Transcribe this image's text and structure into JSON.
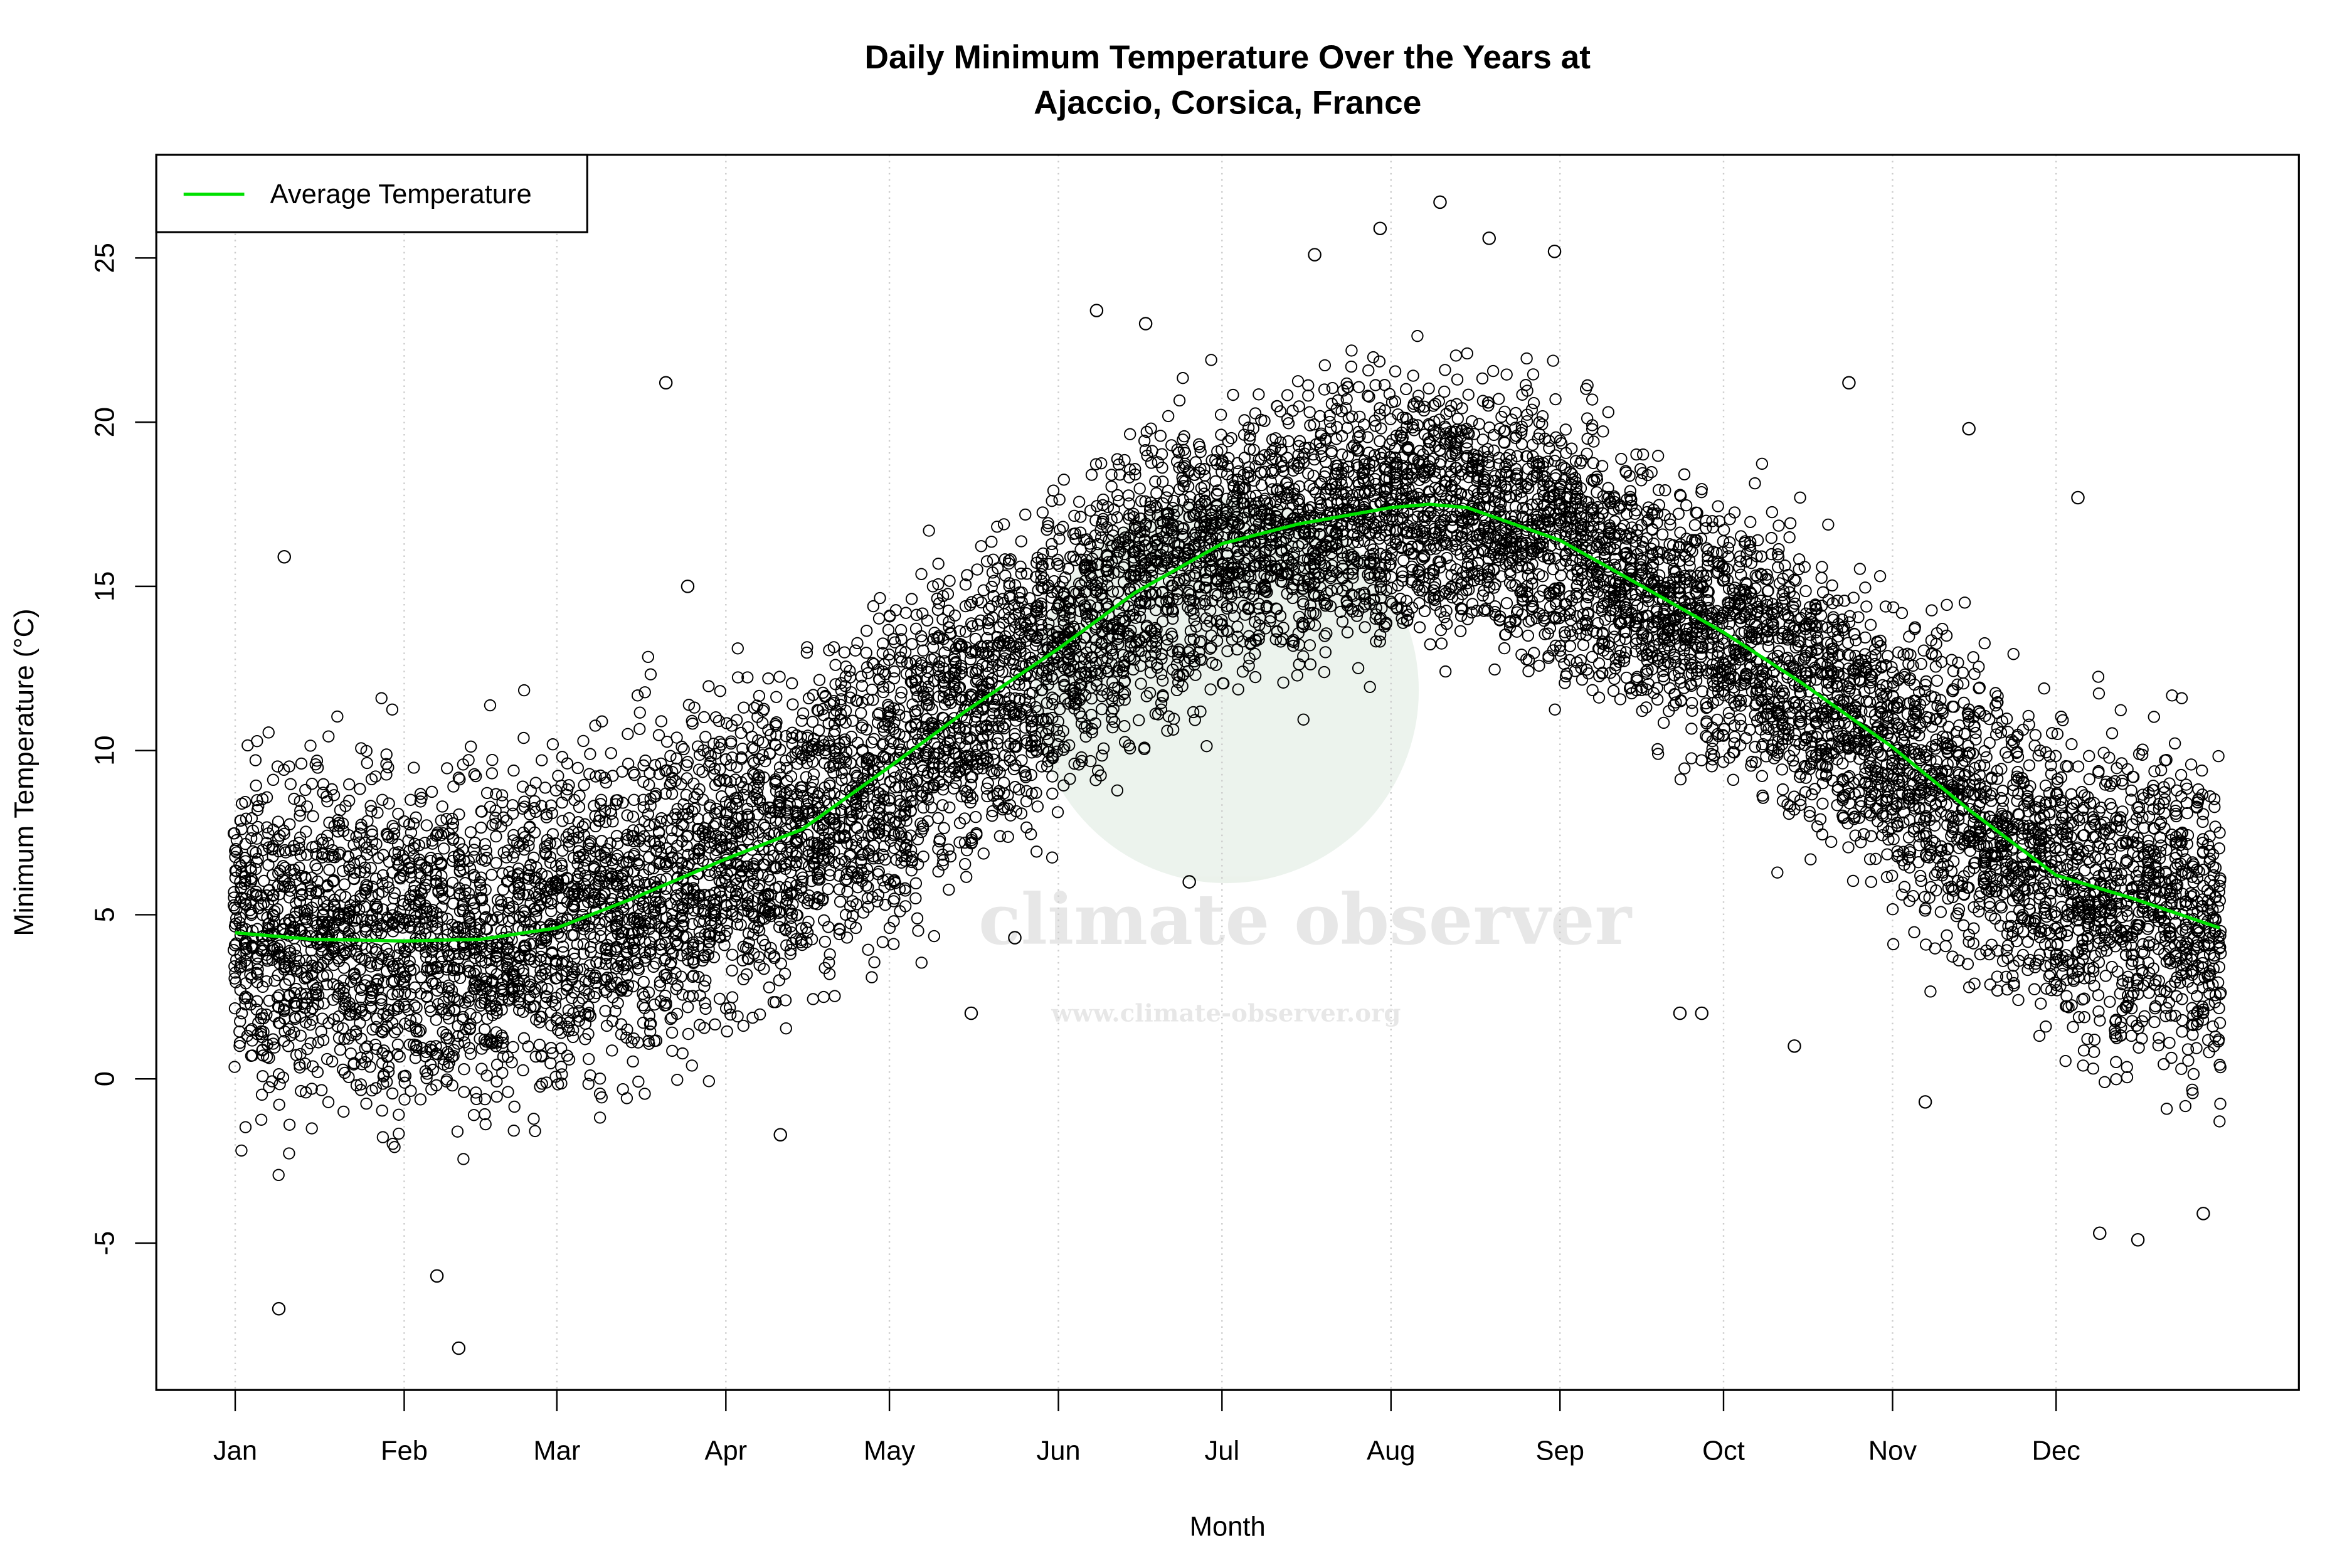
{
  "chart_data": {
    "type": "scatter",
    "title_lines": [
      "Daily Minimum Temperature Over the Years at",
      "Ajaccio, Corsica, France"
    ],
    "xlabel": "Month",
    "ylabel": "Minimum Temperature (°C)",
    "x_unit": "day of year",
    "xlim": [
      1,
      365
    ],
    "ylim": [
      -9.5,
      28
    ],
    "x_ticks": [
      {
        "label": "Jan",
        "day": 1
      },
      {
        "label": "Feb",
        "day": 32
      },
      {
        "label": "Mar",
        "day": 60
      },
      {
        "label": "Apr",
        "day": 91
      },
      {
        "label": "May",
        "day": 121
      },
      {
        "label": "Jun",
        "day": 152
      },
      {
        "label": "Jul",
        "day": 182
      },
      {
        "label": "Aug",
        "day": 213
      },
      {
        "label": "Sep",
        "day": 244
      },
      {
        "label": "Oct",
        "day": 274
      },
      {
        "label": "Nov",
        "day": 305
      },
      {
        "label": "Dec",
        "day": 335
      }
    ],
    "y_ticks": [
      -5,
      0,
      5,
      10,
      15,
      20,
      25
    ],
    "grid": "vertical dotted at month ticks",
    "legend": {
      "placement": "top-left",
      "entries": [
        {
          "label": "Average Temperature",
          "color": "#00e000"
        }
      ]
    },
    "series": [
      {
        "kind": "scatter",
        "marker": "open circle",
        "color": "#000000",
        "monthly_range": [
          {
            "month": "Jan",
            "low": -3,
            "high": 11
          },
          {
            "month": "Feb",
            "low": -3,
            "high": 10.5
          },
          {
            "month": "Mar",
            "low": -2,
            "high": 12
          },
          {
            "month": "Apr",
            "low": 0,
            "high": 13
          },
          {
            "month": "May",
            "low": 3,
            "high": 16
          },
          {
            "month": "Jun",
            "low": 7,
            "high": 19
          },
          {
            "month": "Jul",
            "low": 11,
            "high": 22
          },
          {
            "month": "Aug",
            "low": 12,
            "high": 22.5
          },
          {
            "month": "Sep",
            "low": 11,
            "high": 21.5
          },
          {
            "month": "Oct",
            "low": 8,
            "high": 19
          },
          {
            "month": "Nov",
            "low": 4,
            "high": 16
          },
          {
            "month": "Dec",
            "low": -1,
            "high": 12
          }
        ],
        "outliers": [
          {
            "day": 10,
            "value": 15.9
          },
          {
            "day": 9,
            "value": -7.0
          },
          {
            "day": 42,
            "value": -8.2
          },
          {
            "day": 38,
            "value": -6.0
          },
          {
            "day": 80,
            "value": 21.2
          },
          {
            "day": 84,
            "value": 15.0
          },
          {
            "day": 101,
            "value": -1.7
          },
          {
            "day": 136,
            "value": 2.0
          },
          {
            "day": 144,
            "value": 4.3
          },
          {
            "day": 159,
            "value": 23.4
          },
          {
            "day": 168,
            "value": 23.0
          },
          {
            "day": 176,
            "value": 6.0
          },
          {
            "day": 199,
            "value": 25.1
          },
          {
            "day": 211,
            "value": 25.9
          },
          {
            "day": 222,
            "value": 26.7
          },
          {
            "day": 231,
            "value": 25.6
          },
          {
            "day": 243,
            "value": 25.2
          },
          {
            "day": 266,
            "value": 2.0
          },
          {
            "day": 270,
            "value": 2.0
          },
          {
            "day": 287,
            "value": 1.0
          },
          {
            "day": 297,
            "value": 21.2
          },
          {
            "day": 311,
            "value": -0.7
          },
          {
            "day": 319,
            "value": 19.8
          },
          {
            "day": 339,
            "value": 17.7
          },
          {
            "day": 343,
            "value": -4.7
          },
          {
            "day": 350,
            "value": -4.9
          },
          {
            "day": 362,
            "value": -4.1
          }
        ]
      },
      {
        "kind": "line",
        "name": "Average Temperature",
        "color": "#00e000",
        "points": [
          [
            1,
            4.45
          ],
          [
            15,
            4.25
          ],
          [
            32,
            4.2
          ],
          [
            46,
            4.25
          ],
          [
            60,
            4.6
          ],
          [
            74,
            5.5
          ],
          [
            91,
            6.7
          ],
          [
            105,
            7.6
          ],
          [
            121,
            9.5
          ],
          [
            135,
            11.2
          ],
          [
            152,
            13.1
          ],
          [
            166,
            14.8
          ],
          [
            182,
            16.3
          ],
          [
            196,
            16.9
          ],
          [
            213,
            17.4
          ],
          [
            220,
            17.5
          ],
          [
            227,
            17.4
          ],
          [
            244,
            16.4
          ],
          [
            258,
            15.1
          ],
          [
            274,
            13.6
          ],
          [
            288,
            12.1
          ],
          [
            305,
            10.1
          ],
          [
            319,
            8.2
          ],
          [
            335,
            6.2
          ],
          [
            349,
            5.5
          ],
          [
            365,
            4.6
          ]
        ]
      }
    ]
  },
  "watermark": {
    "name": "climate observer",
    "url": "www.climate-observer.org"
  }
}
